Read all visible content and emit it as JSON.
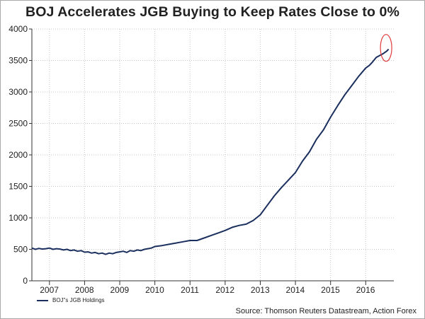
{
  "chart_data": {
    "type": "line",
    "title": "BOJ Accelerates JGB Buying to Keep Rates Close to 0%",
    "xlabel": "",
    "ylabel": "",
    "xlim": [
      2006.5,
      2016.8
    ],
    "ylim": [
      0,
      4000
    ],
    "yticks": [
      0,
      500,
      1000,
      1500,
      2000,
      2500,
      3000,
      3500,
      4000
    ],
    "xtick_labels": [
      "2007",
      "2008",
      "2009",
      "2010",
      "2011",
      "2012",
      "2013",
      "2014",
      "2015",
      "2016"
    ],
    "grid": true,
    "legend_position": "bottom-left",
    "series": [
      {
        "name": "BOJ\"s JGB Holdings",
        "color": "#1b2f5e",
        "x": [
          2006.5,
          2006.6,
          2006.7,
          2006.8,
          2006.9,
          2007.0,
          2007.1,
          2007.2,
          2007.3,
          2007.4,
          2007.5,
          2007.6,
          2007.7,
          2007.8,
          2007.9,
          2008.0,
          2008.1,
          2008.2,
          2008.3,
          2008.4,
          2008.5,
          2008.6,
          2008.7,
          2008.8,
          2008.9,
          2009.0,
          2009.1,
          2009.2,
          2009.3,
          2009.4,
          2009.5,
          2009.6,
          2009.7,
          2009.8,
          2009.9,
          2010.0,
          2010.2,
          2010.4,
          2010.6,
          2010.8,
          2011.0,
          2011.2,
          2011.4,
          2011.6,
          2011.8,
          2012.0,
          2012.2,
          2012.4,
          2012.6,
          2012.8,
          2013.0,
          2013.2,
          2013.4,
          2013.6,
          2013.8,
          2014.0,
          2014.2,
          2014.4,
          2014.6,
          2014.8,
          2015.0,
          2015.2,
          2015.4,
          2015.6,
          2015.8,
          2016.0,
          2016.1,
          2016.2,
          2016.3,
          2016.4,
          2016.5,
          2016.6,
          2016.65
        ],
        "values": [
          520,
          500,
          515,
          505,
          510,
          520,
          500,
          510,
          505,
          490,
          500,
          480,
          490,
          470,
          480,
          455,
          460,
          440,
          450,
          430,
          440,
          420,
          440,
          430,
          450,
          460,
          470,
          450,
          480,
          470,
          490,
          480,
          500,
          510,
          520,
          545,
          560,
          580,
          600,
          620,
          640,
          640,
          680,
          720,
          760,
          800,
          850,
          880,
          900,
          960,
          1050,
          1200,
          1350,
          1480,
          1600,
          1720,
          1900,
          2050,
          2250,
          2400,
          2600,
          2780,
          2950,
          3100,
          3250,
          3380,
          3420,
          3480,
          3550,
          3580,
          3610,
          3650,
          3680
        ]
      }
    ],
    "annotation": {
      "type": "ellipse",
      "x": 2016.58,
      "y": 3700,
      "color": "#e03c3c"
    }
  },
  "legend": {
    "label": "BOJ\"s JGB Holdings",
    "color": "#1b2f5e"
  },
  "source": "Source: Thomson Reuters Datastream, Action Forex"
}
